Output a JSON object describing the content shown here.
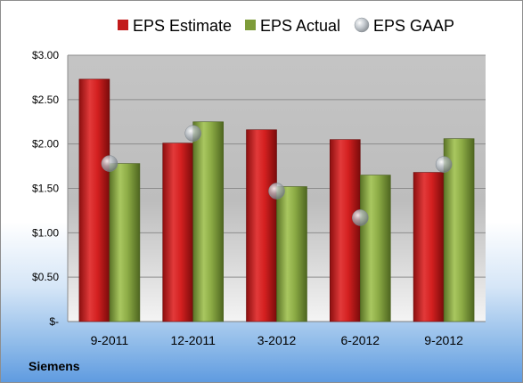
{
  "chart_data": {
    "type": "bar",
    "categories": [
      "9-2011",
      "12-2011",
      "3-2012",
      "6-2012",
      "9-2012"
    ],
    "series": [
      {
        "name": "EPS Estimate",
        "values": [
          2.73,
          2.01,
          2.16,
          2.05,
          1.68
        ],
        "color": "#c21a1a"
      },
      {
        "name": "EPS Actual",
        "values": [
          1.78,
          2.25,
          1.52,
          1.65,
          2.06
        ],
        "color": "#7e9c3a"
      },
      {
        "name": "EPS GAAP",
        "values": [
          1.78,
          2.12,
          1.47,
          1.17,
          1.77
        ],
        "color": "#a8b0b8",
        "marker": "sphere"
      }
    ],
    "y_ticks": [
      "$-",
      "$0.50",
      "$1.00",
      "$1.50",
      "$2.00",
      "$2.50",
      "$3.00"
    ],
    "ylim": [
      0,
      3
    ],
    "grid": true,
    "legend_position": "top"
  },
  "footer": {
    "company": "Siemens"
  }
}
